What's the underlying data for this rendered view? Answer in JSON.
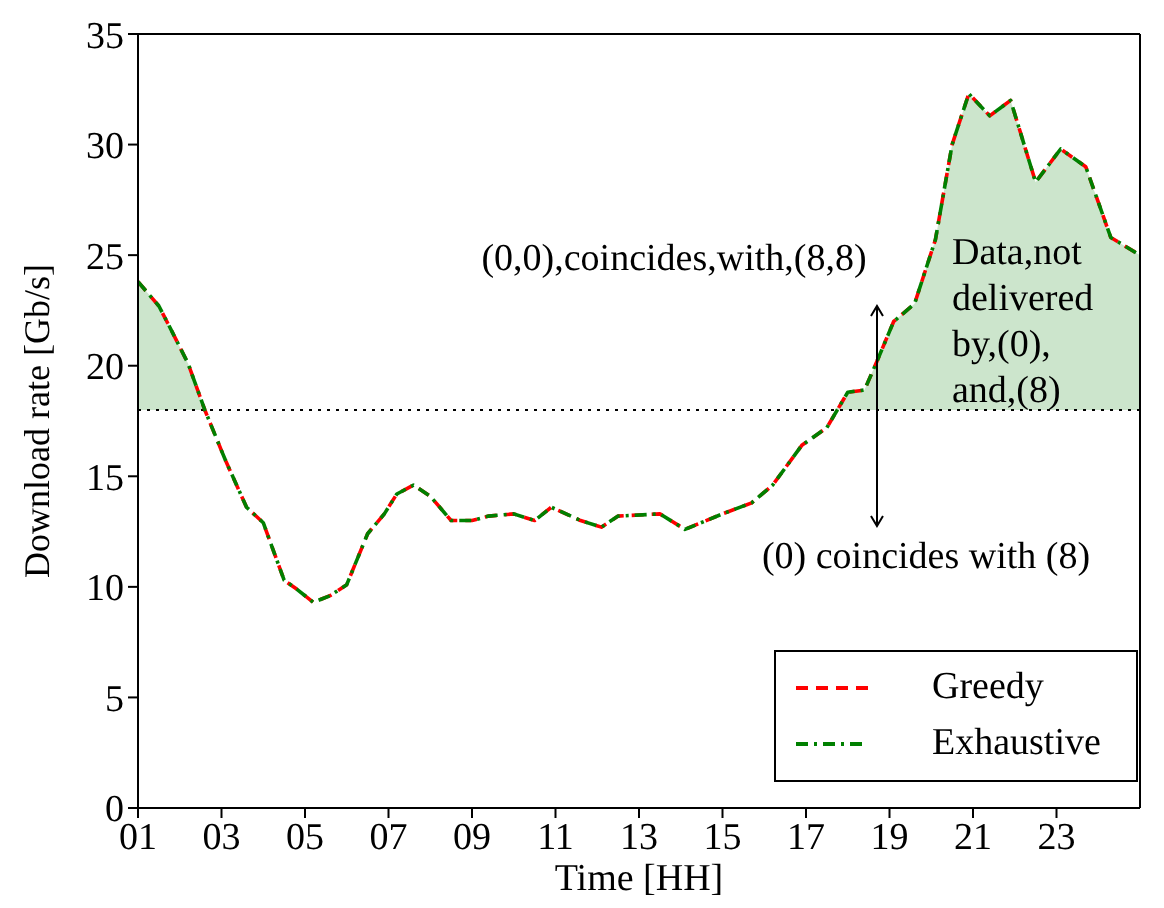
{
  "chart_data": {
    "type": "line",
    "xlabel": "Time [HH]",
    "ylabel": "Download rate [Gb/s]",
    "xlim": [
      1,
      25
    ],
    "xticks": [
      {
        "value": 1,
        "label": "01"
      },
      {
        "value": 3,
        "label": "03"
      },
      {
        "value": 5,
        "label": "05"
      },
      {
        "value": 7,
        "label": "07"
      },
      {
        "value": 9,
        "label": "09"
      },
      {
        "value": 11,
        "label": "11"
      },
      {
        "value": 13,
        "label": "13"
      },
      {
        "value": 15,
        "label": "15"
      },
      {
        "value": 17,
        "label": "17"
      },
      {
        "value": 19,
        "label": "19"
      },
      {
        "value": 21,
        "label": "21"
      },
      {
        "value": 23,
        "label": "23"
      }
    ],
    "ylim": [
      0,
      35
    ],
    "yticks": [
      0,
      5,
      10,
      15,
      20,
      25,
      30,
      35
    ],
    "x": [
      1,
      1.5,
      1.8,
      2.2,
      2.6,
      3.1,
      3.6,
      4.0,
      4.5,
      4.8,
      5.2,
      5.6,
      6.0,
      6.5,
      6.9,
      7.2,
      7.6,
      8.0,
      8.5,
      9.0,
      9.4,
      10.0,
      10.5,
      10.9,
      11.6,
      12.1,
      12.5,
      13.5,
      14.1,
      15.0,
      15.7,
      16.2,
      16.9,
      17.5,
      18.0,
      18.4,
      18.7,
      19.1,
      19.6,
      20.1,
      20.5,
      20.9,
      21.4,
      21.9,
      22.5,
      23.1,
      23.7,
      24.3,
      25.0
    ],
    "series": [
      {
        "name": "Greedy",
        "color": "#ff0000",
        "line_style": "dashed",
        "values": [
          23.8,
          22.7,
          21.6,
          20.1,
          18.0,
          15.7,
          13.6,
          12.9,
          10.3,
          9.9,
          9.3,
          9.6,
          10.1,
          12.4,
          13.3,
          14.2,
          14.6,
          14.1,
          13.0,
          13.0,
          13.2,
          13.3,
          13.0,
          13.6,
          13.0,
          12.7,
          13.2,
          13.3,
          12.6,
          13.3,
          13.8,
          14.6,
          16.4,
          17.2,
          18.8,
          18.9,
          20.2,
          22.0,
          22.8,
          25.7,
          30.0,
          32.3,
          31.3,
          32.0,
          28.3,
          29.8,
          29.0,
          25.8,
          25.0
        ]
      },
      {
        "name": "Exhaustive",
        "color": "#008000",
        "line_style": "dashdot",
        "values": [
          23.8,
          22.7,
          21.6,
          20.1,
          18.0,
          15.7,
          13.6,
          12.9,
          10.3,
          9.9,
          9.3,
          9.6,
          10.1,
          12.4,
          13.3,
          14.2,
          14.6,
          14.1,
          13.0,
          13.0,
          13.2,
          13.3,
          13.0,
          13.6,
          13.0,
          12.7,
          13.2,
          13.3,
          12.6,
          13.3,
          13.8,
          14.6,
          16.4,
          17.2,
          18.8,
          18.9,
          20.2,
          22.0,
          22.8,
          25.7,
          30.0,
          32.3,
          31.3,
          32.0,
          28.3,
          29.8,
          29.0,
          25.8,
          25.0
        ]
      },
      {
        "type": "area",
        "color": "#cce5cc",
        "x": [
          1,
          1.5,
          1.8,
          2.2,
          2.6,
          3.0,
          17.7,
          18.0,
          18.4,
          18.7,
          19.1,
          19.6,
          20.1,
          20.5,
          20.9,
          21.4,
          21.9,
          22.5,
          23.1,
          23.7,
          24.3,
          25.0
        ],
        "values": [
          23.8,
          22.7,
          21.6,
          20.1,
          18.0,
          null,
          18.0,
          18.8,
          18.9,
          20.2,
          22.0,
          22.8,
          25.7,
          30.0,
          32.3,
          31.3,
          32.0,
          28.3,
          29.8,
          29.0,
          25.8,
          25.0
        ]
      }
    ],
    "ref_lines": [
      {
        "axis": "y",
        "value": 18,
        "color": "#000000",
        "line_style": "dotted"
      }
    ],
    "annotations": [
      {
        "text": "(0,0),coincides,with,(8,8)",
        "x": 18.7,
        "y": 18
      },
      {
        "text": "(0) coincides with (8)",
        "x": 18.7,
        "y": 18
      },
      "Data,not\ndelivered\nby,(0),\nand,(8)"
    ],
    "legend": "bottom right",
    "grid": false
  }
}
